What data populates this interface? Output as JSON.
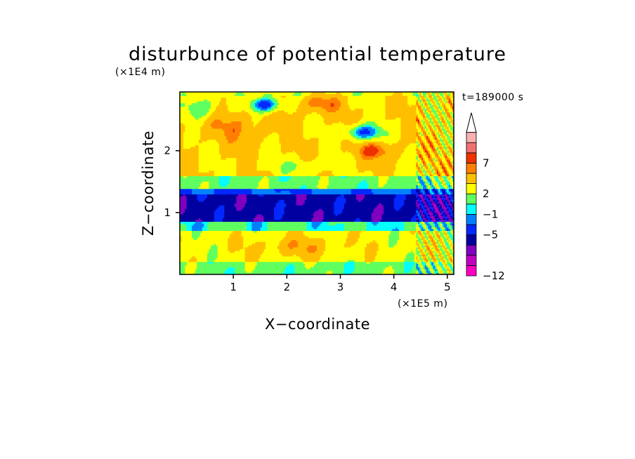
{
  "chart_data": {
    "type": "heatmap",
    "title": "disturbunce of potential temperature",
    "time_label": "t=189000 s",
    "xlabel": "X−coordinate",
    "ylabel": "Z−coordinate",
    "x_scale_label": "(×1E5 m)",
    "y_scale_label": "(×1E4 m)",
    "xlim": [
      0,
      5.12
    ],
    "ylim": [
      0,
      2.95
    ],
    "x_ticks": [
      1,
      2,
      3,
      4,
      5
    ],
    "y_ticks": [
      1,
      2
    ],
    "colorbar": {
      "levels": [
        -12,
        -11,
        -9,
        -7,
        -5,
        -3,
        -1,
        0,
        2,
        4,
        6,
        7,
        9,
        11
      ],
      "labeled_levels": [
        -12,
        -5,
        -1,
        2,
        7
      ],
      "labels": [
        "−12",
        "−5",
        "−1",
        "2",
        "7"
      ],
      "colors": [
        "#ff00c0",
        "#c000c0",
        "#8000c0",
        "#0000a0",
        "#0028ff",
        "#0080ff",
        "#00ffff",
        "#60ff60",
        "#ffff00",
        "#ffbf00",
        "#ff8000",
        "#f03000",
        "#f07070",
        "#f8b0b0"
      ],
      "extend": "max",
      "arrow_color": "#ffffff"
    },
    "field_description": [
      {
        "z_range": [
          0.0,
          0.2
        ],
        "value": 1
      },
      {
        "z_range": [
          0.2,
          0.7
        ],
        "value": 3
      },
      {
        "z_range": [
          0.7,
          0.85
        ],
        "value": 0
      },
      {
        "z_range": [
          0.85,
          1.3
        ],
        "value": -6
      },
      {
        "z_range": [
          1.3,
          1.4
        ],
        "value": -3
      },
      {
        "z_range": [
          1.4,
          1.6
        ],
        "value": 1
      },
      {
        "z_range": [
          1.6,
          2.9
        ],
        "value": 4
      }
    ]
  }
}
